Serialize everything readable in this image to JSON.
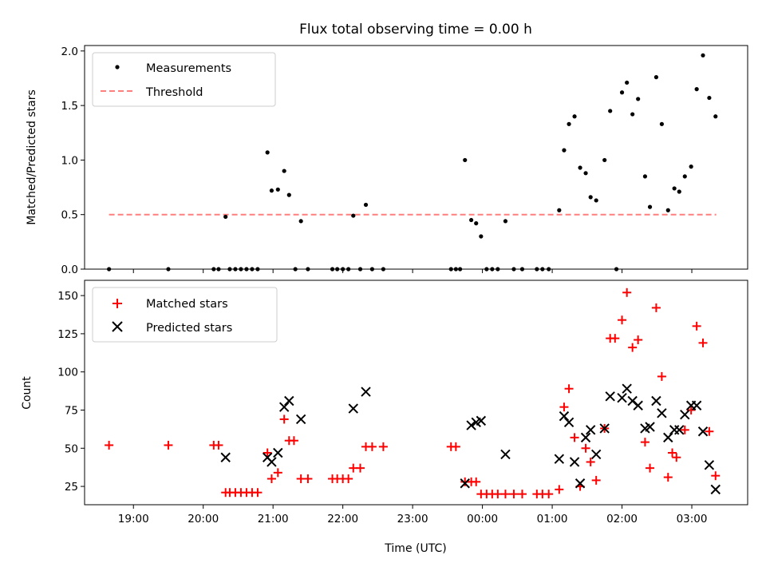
{
  "title": "Flux total observing time = 0.00 h",
  "x_axis": {
    "label": "Time (UTC)",
    "ticks": [
      {
        "t": 19.0,
        "label": "19:00"
      },
      {
        "t": 20.0,
        "label": "20:00"
      },
      {
        "t": 21.0,
        "label": "21:00"
      },
      {
        "t": 22.0,
        "label": "22:00"
      },
      {
        "t": 23.0,
        "label": "23:00"
      },
      {
        "t": 24.0,
        "label": "00:00"
      },
      {
        "t": 25.0,
        "label": "01:00"
      },
      {
        "t": 26.0,
        "label": "02:00"
      },
      {
        "t": 27.0,
        "label": "03:00"
      }
    ]
  },
  "colors": {
    "measurements": "#000000",
    "threshold": "#ff7f7f",
    "matched": "#ff0000",
    "predicted": "#000000"
  },
  "chart_data": [
    {
      "type": "scatter",
      "ylabel": "Matched/Predicted stars",
      "xlim": [
        18.3,
        27.8
      ],
      "ylim": [
        0,
        2.05
      ],
      "y_ticks": [
        {
          "v": 0.0,
          "label": "0.0"
        },
        {
          "v": 0.5,
          "label": "0.5"
        },
        {
          "v": 1.0,
          "label": "1.0"
        },
        {
          "v": 1.5,
          "label": "1.5"
        },
        {
          "v": 2.0,
          "label": "2.0"
        }
      ],
      "legend": {
        "position": "upper-left",
        "entries": [
          "Measurements",
          "Threshold"
        ]
      },
      "threshold": {
        "value": 0.5,
        "x_start": 18.65,
        "x_end": 27.35,
        "label": "Threshold"
      },
      "series": [
        {
          "name": "Measurements",
          "points": [
            [
              18.65,
              0
            ],
            [
              19.5,
              0
            ],
            [
              20.15,
              0
            ],
            [
              20.22,
              0
            ],
            [
              20.32,
              0.48
            ],
            [
              20.38,
              0
            ],
            [
              20.46,
              0
            ],
            [
              20.54,
              0
            ],
            [
              20.62,
              0
            ],
            [
              20.7,
              0
            ],
            [
              20.78,
              0
            ],
            [
              20.92,
              1.07
            ],
            [
              20.98,
              0.72
            ],
            [
              21.07,
              0.73
            ],
            [
              21.16,
              0.9
            ],
            [
              21.23,
              0.68
            ],
            [
              21.32,
              0
            ],
            [
              21.4,
              0.44
            ],
            [
              21.5,
              0
            ],
            [
              21.85,
              0
            ],
            [
              21.92,
              0
            ],
            [
              22.0,
              0
            ],
            [
              22.08,
              0
            ],
            [
              22.15,
              0.49
            ],
            [
              22.25,
              0
            ],
            [
              22.33,
              0.59
            ],
            [
              22.42,
              0
            ],
            [
              22.58,
              0
            ],
            [
              23.55,
              0
            ],
            [
              23.62,
              0
            ],
            [
              23.68,
              0
            ],
            [
              23.75,
              1.0
            ],
            [
              23.84,
              0.45
            ],
            [
              23.91,
              0.42
            ],
            [
              23.98,
              0.3
            ],
            [
              24.06,
              0
            ],
            [
              24.14,
              0
            ],
            [
              24.22,
              0
            ],
            [
              24.33,
              0.44
            ],
            [
              24.45,
              0
            ],
            [
              24.57,
              0
            ],
            [
              24.78,
              0
            ],
            [
              24.86,
              0
            ],
            [
              24.95,
              0
            ],
            [
              25.1,
              0.54
            ],
            [
              25.17,
              1.09
            ],
            [
              25.24,
              1.33
            ],
            [
              25.32,
              1.4
            ],
            [
              25.4,
              0.93
            ],
            [
              25.48,
              0.88
            ],
            [
              25.55,
              0.66
            ],
            [
              25.63,
              0.63
            ],
            [
              25.75,
              1.0
            ],
            [
              25.83,
              1.45
            ],
            [
              25.92,
              0
            ],
            [
              26.0,
              1.62
            ],
            [
              26.07,
              1.71
            ],
            [
              26.15,
              1.42
            ],
            [
              26.23,
              1.56
            ],
            [
              26.33,
              0.85
            ],
            [
              26.4,
              0.57
            ],
            [
              26.49,
              1.76
            ],
            [
              26.57,
              1.33
            ],
            [
              26.66,
              0.54
            ],
            [
              26.75,
              0.74
            ],
            [
              26.82,
              0.71
            ],
            [
              26.9,
              0.85
            ],
            [
              26.99,
              0.94
            ],
            [
              27.07,
              1.65
            ],
            [
              27.16,
              1.96
            ],
            [
              27.25,
              1.57
            ],
            [
              27.34,
              1.4
            ]
          ]
        }
      ]
    },
    {
      "type": "scatter",
      "ylabel": "Count",
      "xlim": [
        18.3,
        27.8
      ],
      "ylim": [
        13,
        160
      ],
      "y_ticks": [
        {
          "v": 25,
          "label": "25"
        },
        {
          "v": 50,
          "label": "50"
        },
        {
          "v": 75,
          "label": "75"
        },
        {
          "v": 100,
          "label": "100"
        },
        {
          "v": 125,
          "label": "125"
        },
        {
          "v": 150,
          "label": "150"
        }
      ],
      "legend": {
        "position": "upper-left",
        "entries": [
          "Matched stars",
          "Predicted stars"
        ]
      },
      "series": [
        {
          "name": "Matched stars",
          "marker": "plus",
          "points": [
            [
              18.65,
              52
            ],
            [
              19.5,
              52
            ],
            [
              20.15,
              52
            ],
            [
              20.22,
              52
            ],
            [
              20.32,
              21
            ],
            [
              20.38,
              21
            ],
            [
              20.46,
              21
            ],
            [
              20.54,
              21
            ],
            [
              20.62,
              21
            ],
            [
              20.7,
              21
            ],
            [
              20.78,
              21
            ],
            [
              20.92,
              47
            ],
            [
              20.98,
              30
            ],
            [
              21.07,
              34
            ],
            [
              21.16,
              69
            ],
            [
              21.23,
              55
            ],
            [
              21.3,
              55
            ],
            [
              21.4,
              30
            ],
            [
              21.5,
              30
            ],
            [
              21.85,
              30
            ],
            [
              21.92,
              30
            ],
            [
              22.0,
              30
            ],
            [
              22.08,
              30
            ],
            [
              22.15,
              37
            ],
            [
              22.25,
              37
            ],
            [
              22.33,
              51
            ],
            [
              22.42,
              51
            ],
            [
              22.58,
              51
            ],
            [
              23.55,
              51
            ],
            [
              23.62,
              51
            ],
            [
              23.75,
              28
            ],
            [
              23.84,
              28
            ],
            [
              23.91,
              28
            ],
            [
              23.98,
              20
            ],
            [
              24.06,
              20
            ],
            [
              24.14,
              20
            ],
            [
              24.22,
              20
            ],
            [
              24.33,
              20
            ],
            [
              24.45,
              20
            ],
            [
              24.57,
              20
            ],
            [
              24.78,
              20
            ],
            [
              24.86,
              20
            ],
            [
              24.95,
              20
            ],
            [
              25.1,
              23
            ],
            [
              25.17,
              77
            ],
            [
              25.24,
              89
            ],
            [
              25.32,
              57
            ],
            [
              25.4,
              25
            ],
            [
              25.48,
              50
            ],
            [
              25.55,
              41
            ],
            [
              25.63,
              29
            ],
            [
              25.75,
              63
            ],
            [
              25.83,
              122
            ],
            [
              25.9,
              122
            ],
            [
              26.0,
              134
            ],
            [
              26.07,
              152
            ],
            [
              26.15,
              116
            ],
            [
              26.23,
              121
            ],
            [
              26.33,
              54
            ],
            [
              26.4,
              37
            ],
            [
              26.49,
              142
            ],
            [
              26.57,
              97
            ],
            [
              26.66,
              31
            ],
            [
              26.72,
              47
            ],
            [
              26.78,
              44
            ],
            [
              26.9,
              62
            ],
            [
              26.99,
              75
            ],
            [
              27.07,
              130
            ],
            [
              27.16,
              119
            ],
            [
              27.25,
              61
            ],
            [
              27.34,
              32
            ]
          ]
        },
        {
          "name": "Predicted stars",
          "marker": "x",
          "points": [
            [
              20.32,
              44
            ],
            [
              20.92,
              44
            ],
            [
              20.98,
              41
            ],
            [
              21.07,
              47
            ],
            [
              21.16,
              77
            ],
            [
              21.23,
              81
            ],
            [
              21.4,
              69
            ],
            [
              22.15,
              76
            ],
            [
              22.33,
              87
            ],
            [
              23.75,
              27
            ],
            [
              23.84,
              65
            ],
            [
              23.91,
              67
            ],
            [
              23.98,
              68
            ],
            [
              24.33,
              46
            ],
            [
              25.1,
              43
            ],
            [
              25.17,
              71
            ],
            [
              25.24,
              67
            ],
            [
              25.32,
              41
            ],
            [
              25.4,
              27
            ],
            [
              25.48,
              57
            ],
            [
              25.55,
              62
            ],
            [
              25.63,
              46
            ],
            [
              25.75,
              63
            ],
            [
              25.83,
              84
            ],
            [
              26.0,
              83
            ],
            [
              26.07,
              89
            ],
            [
              26.15,
              81
            ],
            [
              26.23,
              78
            ],
            [
              26.33,
              63
            ],
            [
              26.4,
              64
            ],
            [
              26.49,
              81
            ],
            [
              26.57,
              73
            ],
            [
              26.66,
              57
            ],
            [
              26.75,
              62
            ],
            [
              26.82,
              62
            ],
            [
              26.9,
              72
            ],
            [
              26.99,
              78
            ],
            [
              27.07,
              78
            ],
            [
              27.16,
              61
            ],
            [
              27.25,
              39
            ],
            [
              27.34,
              23
            ]
          ]
        }
      ]
    }
  ]
}
